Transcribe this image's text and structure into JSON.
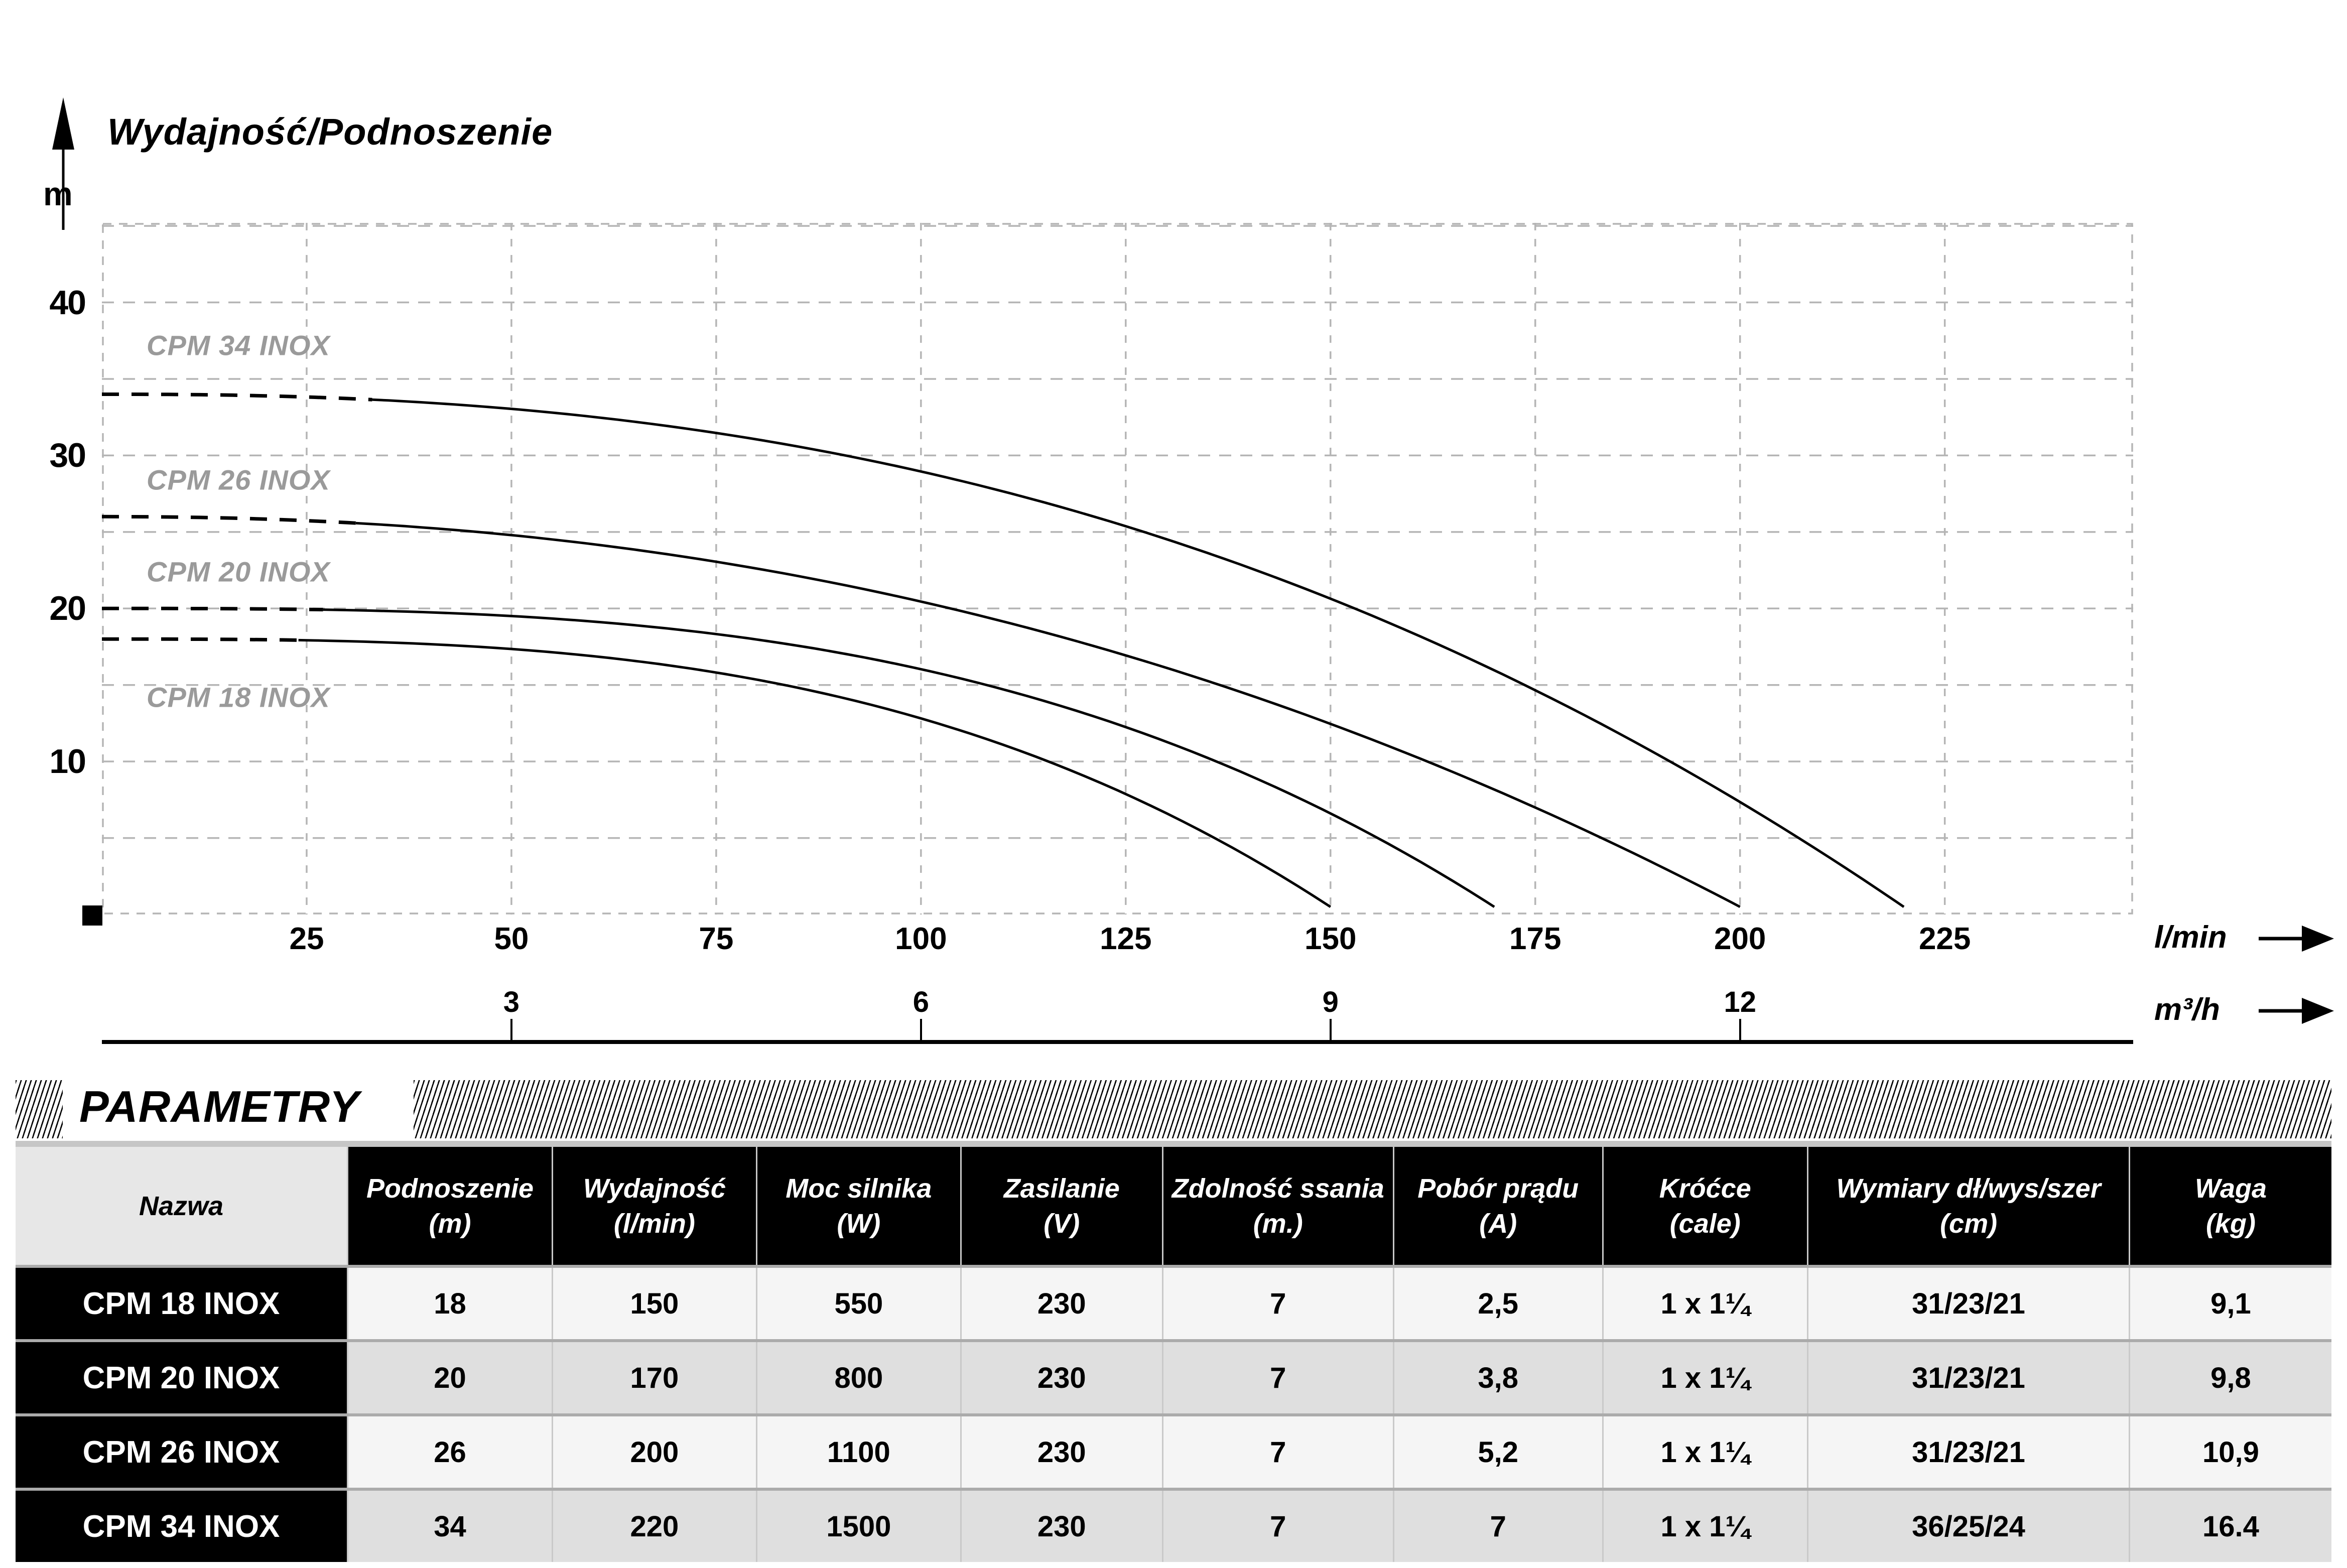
{
  "chart_data": {
    "type": "line",
    "title": "Wydajność/Podnoszenie",
    "y_axis": {
      "label": "m",
      "ticks": [
        40,
        30,
        20,
        10
      ],
      "range": [
        0,
        45.2
      ],
      "grid_step_m": 5
    },
    "x_axis": {
      "label_primary": "l/min",
      "label_secondary": "m³/h",
      "ticks_lmin": [
        25,
        50,
        75,
        100,
        125,
        150,
        175,
        200,
        225
      ],
      "ticks_m3h": [
        {
          "value": "3",
          "at_lmin": 50
        },
        {
          "value": "6",
          "at_lmin": 100
        },
        {
          "value": "9",
          "at_lmin": 150
        },
        {
          "value": "12",
          "at_lmin": 200
        }
      ],
      "range_lmin": [
        0,
        248
      ],
      "grid_step_lmin": 25
    },
    "grid": true,
    "legend_position": "labels-on-chart",
    "colors": {
      "curve": "#000000",
      "grid": "#b5b5b5",
      "series_label": "#9a9a9a"
    },
    "series": [
      {
        "name": "CPM 34 INOX",
        "head_at_zero_flow_m": 34,
        "max_flow_lmin": 220,
        "curve_exponent": 2.4,
        "dashed_until_lmin": 33,
        "label_at_m": 37.2,
        "points_lmin_m": [
          [
            0,
            34
          ],
          [
            25,
            33.8
          ],
          [
            50,
            33
          ],
          [
            75,
            31.4
          ],
          [
            100,
            28.9
          ],
          [
            125,
            25.2
          ],
          [
            150,
            20.4
          ],
          [
            175,
            14.4
          ],
          [
            200,
            6.9
          ],
          [
            220,
            0.5
          ]
        ]
      },
      {
        "name": "CPM 26 INOX",
        "head_at_zero_flow_m": 26,
        "max_flow_lmin": 200,
        "curve_exponent": 2.2,
        "dashed_until_lmin": 31,
        "label_at_m": 28.4,
        "points_lmin_m": [
          [
            0,
            26
          ],
          [
            25,
            25.7
          ],
          [
            50,
            24.8
          ],
          [
            75,
            23
          ],
          [
            100,
            20.3
          ],
          [
            125,
            16.8
          ],
          [
            150,
            12.2
          ],
          [
            175,
            6.6
          ],
          [
            200,
            0.5
          ]
        ]
      },
      {
        "name": "CPM 20 INOX",
        "head_at_zero_flow_m": 20,
        "max_flow_lmin": 170,
        "curve_exponent": 3,
        "dashed_until_lmin": 27,
        "label_at_m": 22.4,
        "points_lmin_m": [
          [
            0,
            20
          ],
          [
            25,
            19.9
          ],
          [
            50,
            19.5
          ],
          [
            75,
            18.3
          ],
          [
            100,
            15.9
          ],
          [
            125,
            12.1
          ],
          [
            150,
            6.3
          ],
          [
            170,
            0.5
          ]
        ]
      },
      {
        "name": "CPM 18 INOX",
        "head_at_zero_flow_m": 18,
        "max_flow_lmin": 150,
        "curve_exponent": 3,
        "dashed_until_lmin": 24,
        "label_at_m": 14.2,
        "points_lmin_m": [
          [
            0,
            18
          ],
          [
            25,
            17.9
          ],
          [
            50,
            17.3
          ],
          [
            75,
            15.8
          ],
          [
            100,
            12.7
          ],
          [
            125,
            7.6
          ],
          [
            150,
            0.5
          ]
        ]
      }
    ]
  },
  "parameters": {
    "section_title": "PARAMETRY",
    "columns": [
      {
        "label": "Nazwa",
        "unit": ""
      },
      {
        "label": "Podnoszenie",
        "unit": "(m)"
      },
      {
        "label": "Wydajność",
        "unit": "(l/min)"
      },
      {
        "label": "Moc silnika",
        "unit": "(W)"
      },
      {
        "label": "Zasilanie",
        "unit": "(V)"
      },
      {
        "label": "Zdolność ssania",
        "unit": "(m.)"
      },
      {
        "label": "Pobór prądu",
        "unit": "(A)"
      },
      {
        "label": "Króćce",
        "unit": "(cale)"
      },
      {
        "label": "Wymiary dł/wys/szer",
        "unit": "(cm)"
      },
      {
        "label": "Waga",
        "unit": "(kg)"
      }
    ],
    "rows": [
      {
        "name": "CPM 18 INOX",
        "values": [
          "18",
          "150",
          "550",
          "230",
          "7",
          "2,5",
          "1 x 1¼",
          "31/23/21",
          "9,1"
        ]
      },
      {
        "name": "CPM 20 INOX",
        "values": [
          "20",
          "170",
          "800",
          "230",
          "7",
          "3,8",
          "1 x 1¼",
          "31/23/21",
          "9,8"
        ]
      },
      {
        "name": "CPM 26 INOX",
        "values": [
          "26",
          "200",
          "1100",
          "230",
          "7",
          "5,2",
          "1 x 1¼",
          "31/23/21",
          "10,9"
        ]
      },
      {
        "name": "CPM 34 INOX",
        "values": [
          "34",
          "220",
          "1500",
          "230",
          "7",
          "7",
          "1 x 1¼",
          "36/25/24",
          "16.4"
        ]
      }
    ]
  }
}
